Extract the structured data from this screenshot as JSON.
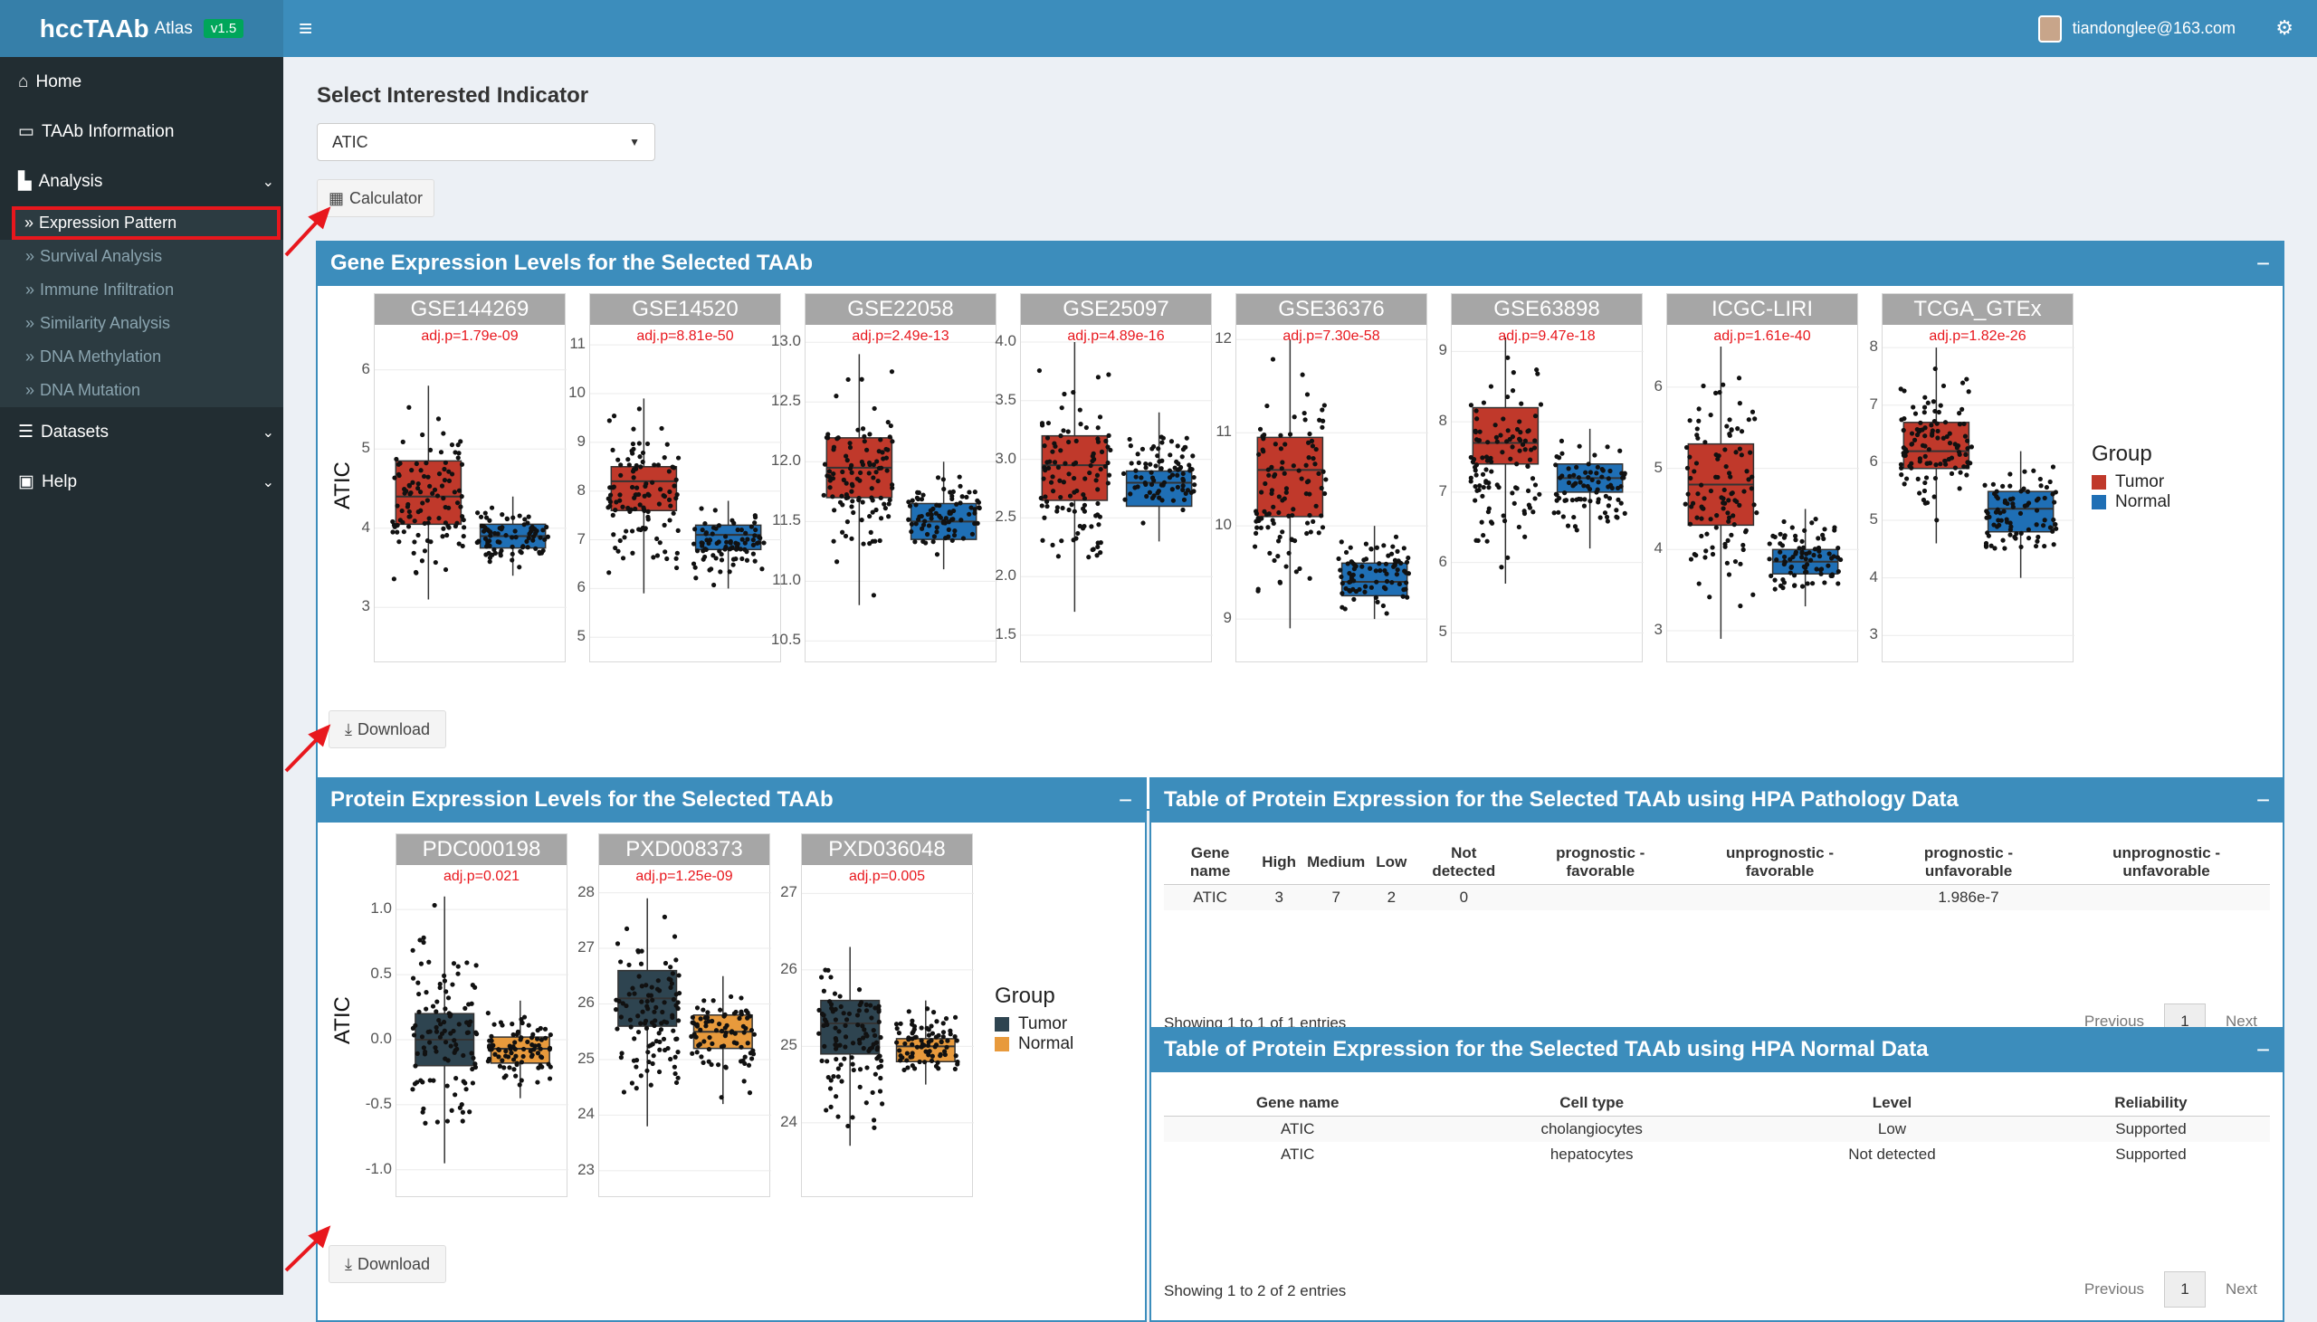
{
  "app": {
    "title": "hccTAAb",
    "title_sub": "Atlas",
    "version": "v1.5",
    "user_email": "tiandonglee@163.com"
  },
  "sidebar": {
    "items": [
      {
        "label": "Home",
        "icon": "home-icon"
      },
      {
        "label": "TAAb Information",
        "icon": "folder-open-icon"
      },
      {
        "label": "Analysis",
        "icon": "area-chart-icon"
      },
      {
        "label": "Datasets",
        "icon": "database-icon"
      },
      {
        "label": "Help",
        "icon": "help-icon"
      }
    ],
    "analysis_sub": [
      {
        "label": "Expression Pattern",
        "active": true
      },
      {
        "label": "Survival Analysis"
      },
      {
        "label": "Immune Infiltration"
      },
      {
        "label": "Similarity Analysis"
      },
      {
        "label": "DNA Methylation"
      },
      {
        "label": "DNA Mutation"
      }
    ]
  },
  "main": {
    "select_label": "Select Interested Indicator",
    "selected": "ATIC",
    "calculator_label": "Calculator",
    "download_label": "Download"
  },
  "gene_box": {
    "title": "Gene Expression Levels for the Selected TAAb",
    "minimize": "−"
  },
  "protein_box": {
    "title": "Protein Expression Levels for the Selected TAAb",
    "minimize": "−"
  },
  "pathology_box": {
    "title": "Table of Protein Expression for the Selected TAAb using HPA Pathology Data",
    "minimize": "−"
  },
  "normal_box": {
    "title": "Table of Protein Expression for the Selected TAAb using HPA Normal Data",
    "minimize": "−"
  },
  "colors": {
    "tumor": "#c0392b",
    "normal": "#1f6fb5",
    "p_tumor": "#2e4450",
    "p_normal": "#e89a3c",
    "accent": "#3c8dbc",
    "marker": "#e8171d"
  },
  "chart_data": [
    {
      "type": "box",
      "ylabel": "ATIC",
      "legend_title": "Group",
      "legend": [
        "Tumor",
        "Normal"
      ],
      "panels": [
        {
          "title": "GSE144269",
          "padj": "adj.p=1.79e-09",
          "ylim": [
            2.5,
            6.5
          ],
          "ticks": [
            3,
            4,
            5,
            6
          ],
          "tumor": {
            "q1": 4.05,
            "med": 4.4,
            "q3": 4.85,
            "lo": 3.1,
            "hi": 5.8
          },
          "normal": {
            "q1": 3.75,
            "med": 3.9,
            "q3": 4.05,
            "lo": 3.4,
            "hi": 4.4
          }
        },
        {
          "title": "GSE14520",
          "padj": "adj.p=8.81e-50",
          "ylim": [
            4.8,
            11.3
          ],
          "ticks": [
            5,
            6,
            7,
            8,
            9,
            10,
            11
          ],
          "tumor": {
            "q1": 7.6,
            "med": 8.2,
            "q3": 8.5,
            "lo": 5.9,
            "hi": 9.9
          },
          "normal": {
            "q1": 6.8,
            "med": 7.1,
            "q3": 7.3,
            "lo": 6.0,
            "hi": 7.8
          }
        },
        {
          "title": "GSE22058",
          "padj": "adj.p=2.49e-13",
          "ylim": [
            10.45,
            13.1
          ],
          "ticks": [
            "10.5",
            "11.0",
            "11.5",
            "12.0",
            "12.5",
            "13.0"
          ],
          "tumor": {
            "q1": 11.7,
            "med": 11.95,
            "q3": 12.2,
            "lo": 10.8,
            "hi": 12.9
          },
          "normal": {
            "q1": 11.35,
            "med": 11.5,
            "q3": 11.65,
            "lo": 11.1,
            "hi": 12.0
          }
        },
        {
          "title": "GSE25097",
          "padj": "adj.p=4.89e-16",
          "ylim": [
            1.4,
            4.1
          ],
          "ticks": [
            "1.5",
            "2.0",
            "2.5",
            "3.0",
            "3.5",
            "4.0"
          ],
          "tumor": {
            "q1": 2.65,
            "med": 2.95,
            "q3": 3.2,
            "lo": 1.7,
            "hi": 4.0
          },
          "normal": {
            "q1": 2.6,
            "med": 2.8,
            "q3": 2.9,
            "lo": 2.3,
            "hi": 3.4
          }
        },
        {
          "title": "GSE36376",
          "padj": "adj.p=7.30e-58",
          "ylim": [
            8.7,
            12.1
          ],
          "ticks": [
            9,
            10,
            11,
            12
          ],
          "tumor": {
            "q1": 10.1,
            "med": 10.6,
            "q3": 10.95,
            "lo": 8.9,
            "hi": 12.0
          },
          "normal": {
            "q1": 9.25,
            "med": 9.4,
            "q3": 9.6,
            "lo": 9.0,
            "hi": 10.0
          }
        },
        {
          "title": "GSE63898",
          "padj": "adj.p=9.47e-18",
          "ylim": [
            4.8,
            9.3
          ],
          "ticks": [
            5,
            6,
            7,
            8,
            9
          ],
          "tumor": {
            "q1": 7.4,
            "med": 7.7,
            "q3": 8.2,
            "lo": 5.7,
            "hi": 9.2
          },
          "normal": {
            "q1": 7.0,
            "med": 7.2,
            "q3": 7.4,
            "lo": 6.2,
            "hi": 7.9
          }
        },
        {
          "title": "ICGC-LIRI",
          "padj": "adj.p=1.61e-40",
          "ylim": [
            2.8,
            6.7
          ],
          "ticks": [
            3,
            4,
            5,
            6
          ],
          "tumor": {
            "q1": 4.3,
            "med": 4.8,
            "q3": 5.3,
            "lo": 2.9,
            "hi": 6.5
          },
          "normal": {
            "q1": 3.7,
            "med": 3.85,
            "q3": 4.0,
            "lo": 3.3,
            "hi": 4.5
          }
        },
        {
          "title": "TCGA_GTEx",
          "padj": "adj.p=1.82e-26",
          "ylim": [
            2.8,
            8.3
          ],
          "ticks": [
            3,
            4,
            5,
            6,
            7,
            8
          ],
          "tumor": {
            "q1": 5.9,
            "med": 6.2,
            "q3": 6.7,
            "lo": 4.6,
            "hi": 8.0
          },
          "normal": {
            "q1": 4.8,
            "med": 5.2,
            "q3": 5.5,
            "lo": 4.0,
            "hi": 6.2
          }
        }
      ]
    },
    {
      "type": "box",
      "ylabel": "ATIC",
      "legend_title": "Group",
      "legend": [
        "Tumor",
        "Normal"
      ],
      "panels": [
        {
          "title": "PDC000198",
          "padj": "adj.p=0.021",
          "ylim": [
            -1.05,
            1.3
          ],
          "ticks": [
            "-1.0",
            "-0.5",
            "0.0",
            "0.5",
            "1.0"
          ],
          "tumor": {
            "q1": -0.2,
            "med": 0.0,
            "q3": 0.2,
            "lo": -0.95,
            "hi": 1.1
          },
          "normal": {
            "q1": -0.18,
            "med": -0.07,
            "q3": 0.02,
            "lo": -0.45,
            "hi": 0.3
          }
        },
        {
          "title": "PXD008373",
          "padj": "adj.p=1.25e-09",
          "ylim": [
            22.9,
            28.4
          ],
          "ticks": [
            23,
            24,
            25,
            26,
            27,
            28
          ],
          "tumor": {
            "q1": 25.6,
            "med": 26.1,
            "q3": 26.6,
            "lo": 23.8,
            "hi": 27.9
          },
          "normal": {
            "q1": 25.2,
            "med": 25.5,
            "q3": 25.8,
            "lo": 24.2,
            "hi": 26.5
          }
        },
        {
          "title": "PXD036048",
          "padj": "adj.p=0.005",
          "ylim": [
            23.3,
            27.3
          ],
          "ticks": [
            24,
            25,
            26,
            27
          ],
          "tumor": {
            "q1": 24.9,
            "med": 25.3,
            "q3": 25.6,
            "lo": 23.7,
            "hi": 26.3
          },
          "normal": {
            "q1": 24.8,
            "med": 25.0,
            "q3": 25.1,
            "lo": 24.5,
            "hi": 25.6
          }
        }
      ]
    }
  ],
  "pathology_table": {
    "headers": [
      "Gene name",
      "High",
      "Medium",
      "Low",
      "Not detected",
      "prognostic - favorable",
      "unprognostic - favorable",
      "prognostic - unfavorable",
      "unprognostic - unfavorable"
    ],
    "rows": [
      [
        "ATIC",
        "3",
        "7",
        "2",
        "0",
        "",
        "",
        "1.986e-7",
        ""
      ]
    ],
    "info": "Showing 1 to 1 of 1 entries",
    "prev": "Previous",
    "page": "1",
    "next": "Next"
  },
  "normal_table": {
    "headers": [
      "Gene name",
      "Cell type",
      "Level",
      "Reliability"
    ],
    "rows": [
      [
        "ATIC",
        "cholangiocytes",
        "Low",
        "Supported"
      ],
      [
        "ATIC",
        "hepatocytes",
        "Not detected",
        "Supported"
      ]
    ],
    "info": "Showing 1 to 2 of 2 entries",
    "prev": "Previous",
    "page": "1",
    "next": "Next"
  }
}
